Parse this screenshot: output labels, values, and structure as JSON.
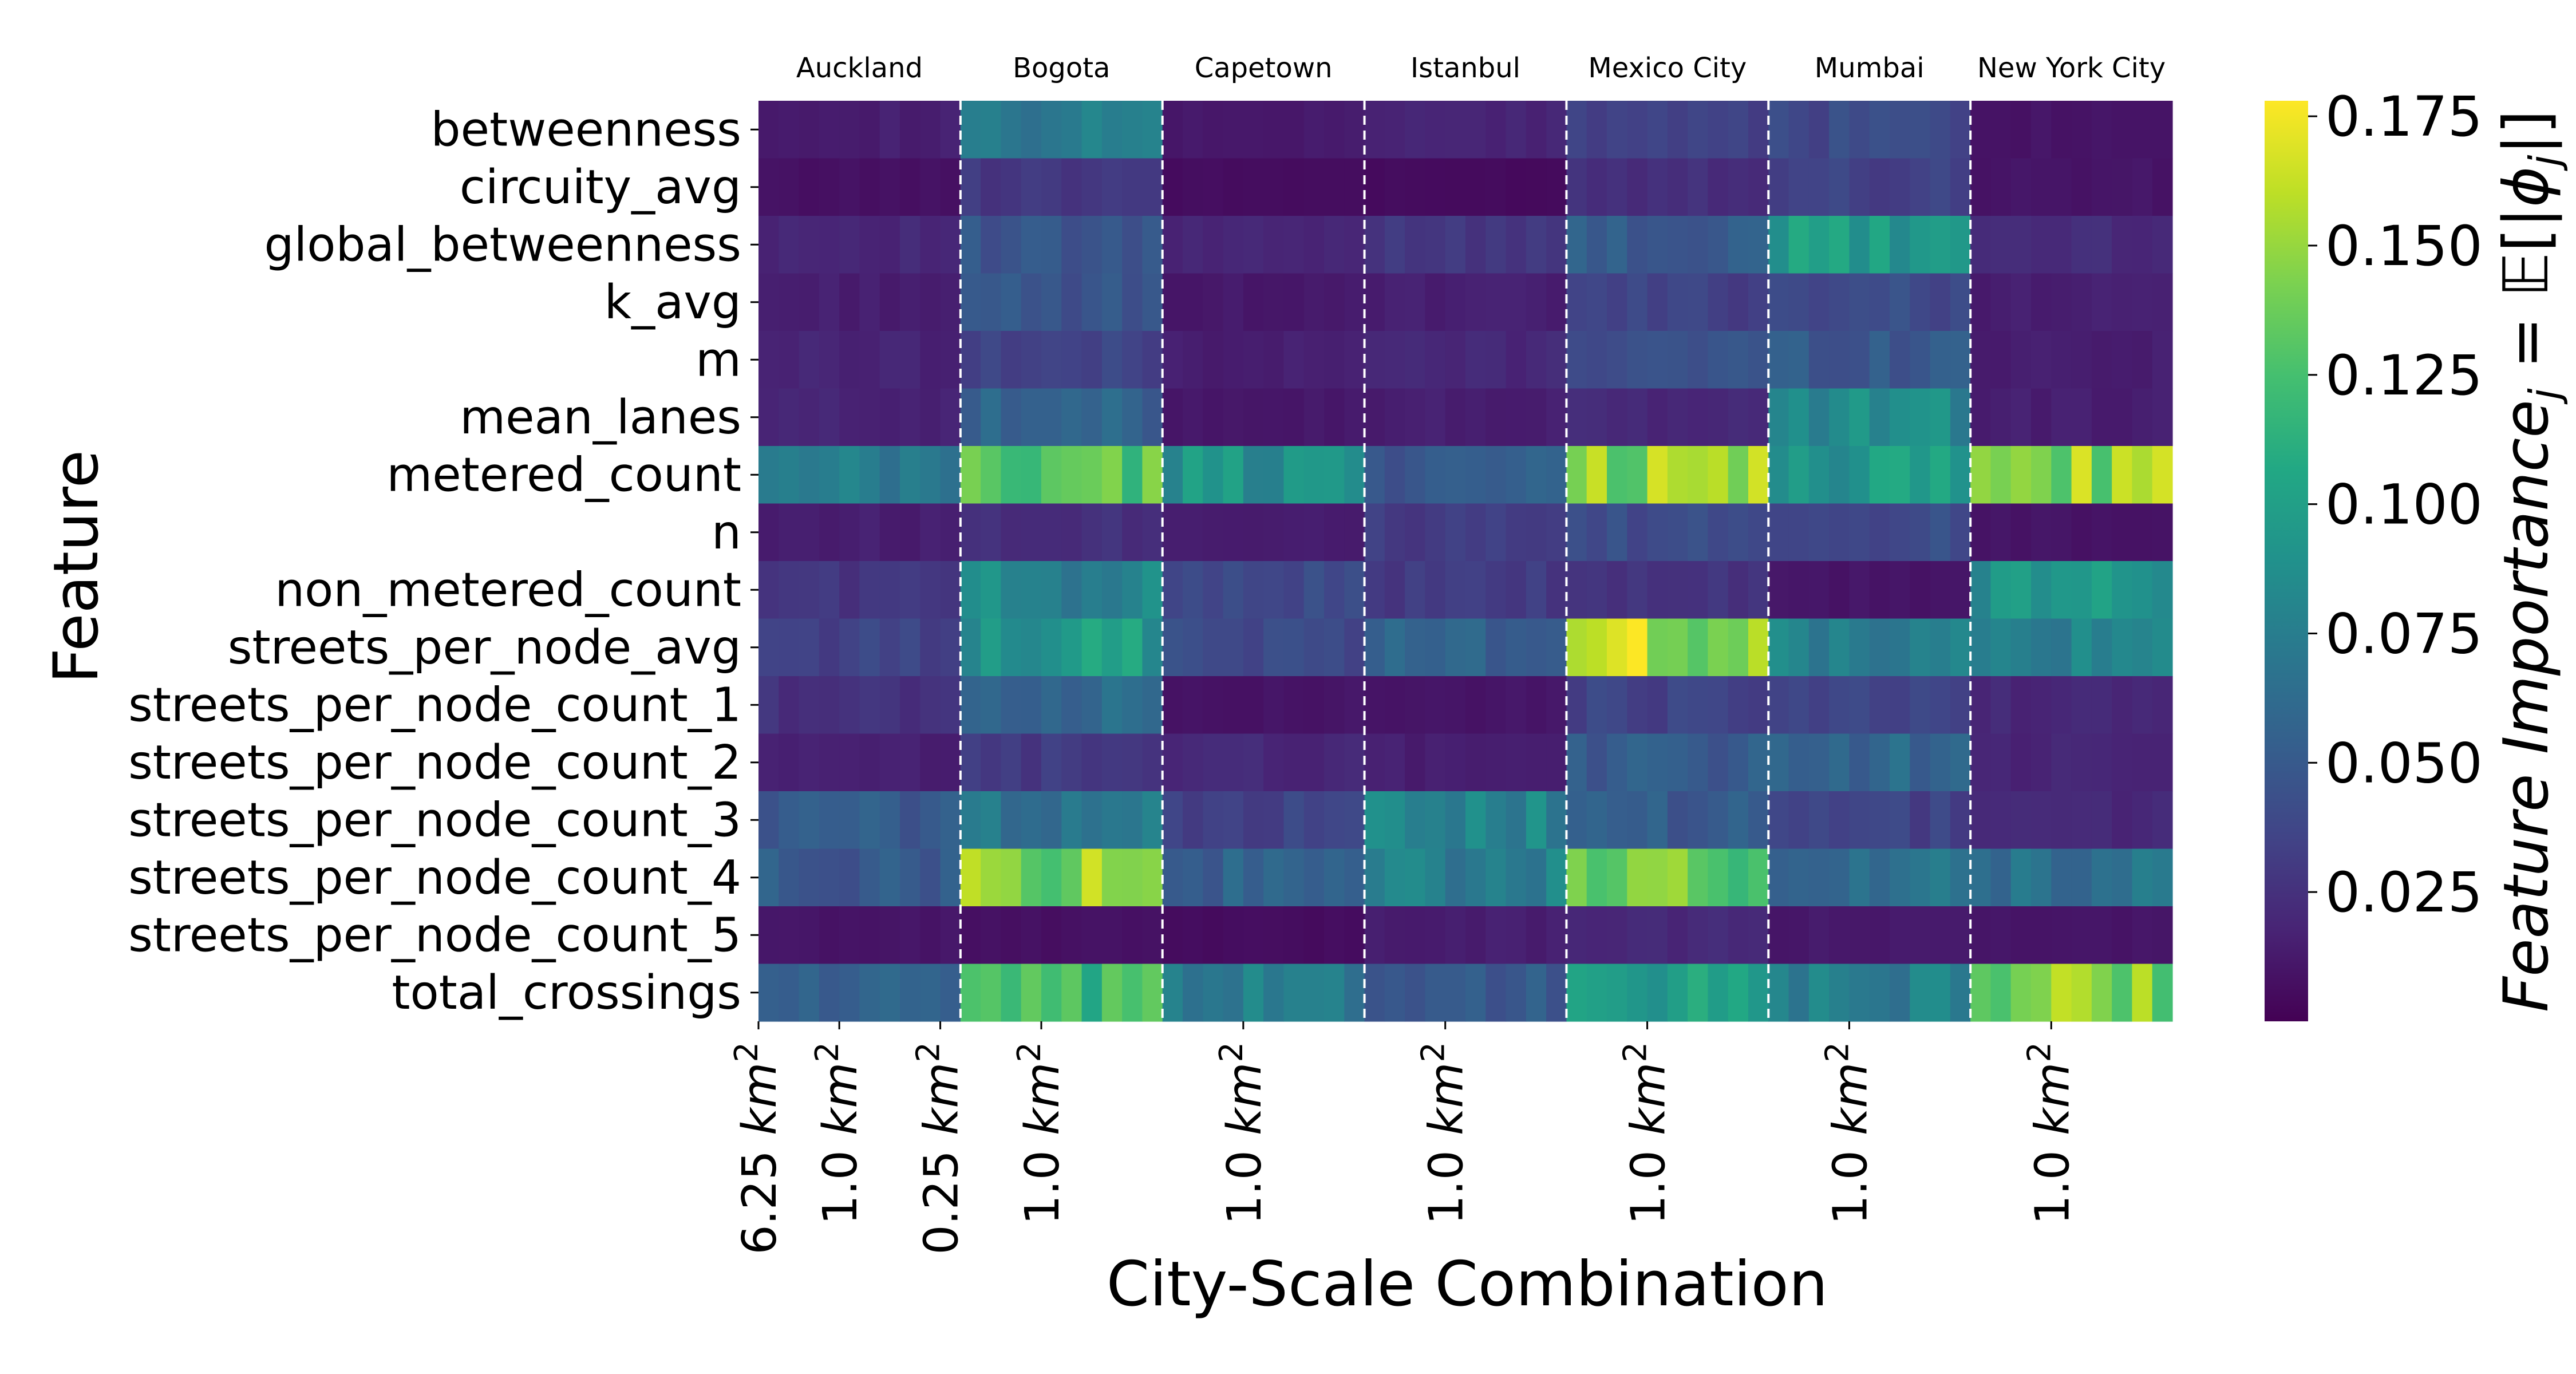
{
  "chart_data": {
    "type": "heatmap",
    "title": "",
    "xlabel": "City-Scale Combination",
    "ylabel": "Feature",
    "colorbar_label": "Feature Importance$_j = \\mathbb{E}[|\\phi_j|]$",
    "colorbar_label_parts": {
      "main": "Feature Importance",
      "sub": "j",
      "eq": " = ",
      "E": "𝔼",
      "open": "[|",
      "phi": "ϕ",
      "phi_sub": "j",
      "close": "|]"
    },
    "colormap": "viridis",
    "color_range": [
      0.0,
      0.178
    ],
    "colorbar_ticks": [
      "0.025",
      "0.050",
      "0.075",
      "0.100",
      "0.125",
      "0.150",
      "0.175"
    ],
    "colorbar_tick_values": [
      0.025,
      0.05,
      0.075,
      0.1,
      0.125,
      0.15,
      0.175
    ],
    "features": [
      "betweenness",
      "circuity_avg",
      "global_betweenness",
      "k_avg",
      "m",
      "mean_lanes",
      "metered_count",
      "n",
      "non_metered_count",
      "streets_per_node_avg",
      "streets_per_node_count_1",
      "streets_per_node_count_2",
      "streets_per_node_count_3",
      "streets_per_node_count_4",
      "streets_per_node_count_5",
      "total_crossings"
    ],
    "cities": [
      "Auckland",
      "Bogota",
      "Capetown",
      "Istanbul",
      "Mexico City",
      "Mumbai",
      "New York City"
    ],
    "columns_per_city": 10,
    "x_tick_labels": [
      {
        "col": 0,
        "text": "6.25",
        "unit": "km",
        "exp": "2"
      },
      {
        "col": 4,
        "text": "1.0",
        "unit": "km",
        "exp": "2"
      },
      {
        "col": 9,
        "text": "0.25",
        "unit": "km",
        "exp": "2"
      },
      {
        "col": 14,
        "text": "1.0",
        "unit": "km",
        "exp": "2"
      },
      {
        "col": 24,
        "text": "1.0",
        "unit": "km",
        "exp": "2"
      },
      {
        "col": 34,
        "text": "1.0",
        "unit": "km",
        "exp": "2"
      },
      {
        "col": 44,
        "text": "1.0",
        "unit": "km",
        "exp": "2"
      },
      {
        "col": 54,
        "text": "1.0",
        "unit": "km",
        "exp": "2"
      },
      {
        "col": 64,
        "text": "1.0",
        "unit": "km",
        "exp": "2"
      }
    ],
    "city_dividers": "dashed white vertical lines between cities",
    "base_values": [
      [
        0.015,
        0.07,
        0.012,
        0.018,
        0.035,
        0.04,
        0.01
      ],
      [
        0.008,
        0.03,
        0.006,
        0.005,
        0.025,
        0.035,
        0.01
      ],
      [
        0.02,
        0.045,
        0.018,
        0.03,
        0.05,
        0.095,
        0.022
      ],
      [
        0.015,
        0.045,
        0.012,
        0.015,
        0.035,
        0.04,
        0.015
      ],
      [
        0.018,
        0.035,
        0.015,
        0.02,
        0.045,
        0.05,
        0.015
      ],
      [
        0.018,
        0.055,
        0.012,
        0.015,
        0.02,
        0.085,
        0.015
      ],
      [
        0.07,
        0.13,
        0.09,
        0.05,
        0.15,
        0.095,
        0.145
      ],
      [
        0.015,
        0.025,
        0.015,
        0.03,
        0.04,
        0.04,
        0.01
      ],
      [
        0.028,
        0.08,
        0.04,
        0.03,
        0.025,
        0.01,
        0.09
      ],
      [
        0.035,
        0.095,
        0.04,
        0.055,
        0.155,
        0.075,
        0.075
      ],
      [
        0.025,
        0.06,
        0.01,
        0.01,
        0.035,
        0.035,
        0.02
      ],
      [
        0.015,
        0.03,
        0.02,
        0.015,
        0.05,
        0.06,
        0.018
      ],
      [
        0.05,
        0.07,
        0.035,
        0.08,
        0.05,
        0.035,
        0.02
      ],
      [
        0.05,
        0.145,
        0.055,
        0.075,
        0.13,
        0.065,
        0.065
      ],
      [
        0.01,
        0.008,
        0.006,
        0.015,
        0.02,
        0.012,
        0.01
      ],
      [
        0.055,
        0.115,
        0.075,
        0.05,
        0.095,
        0.075,
        0.145
      ]
    ]
  }
}
